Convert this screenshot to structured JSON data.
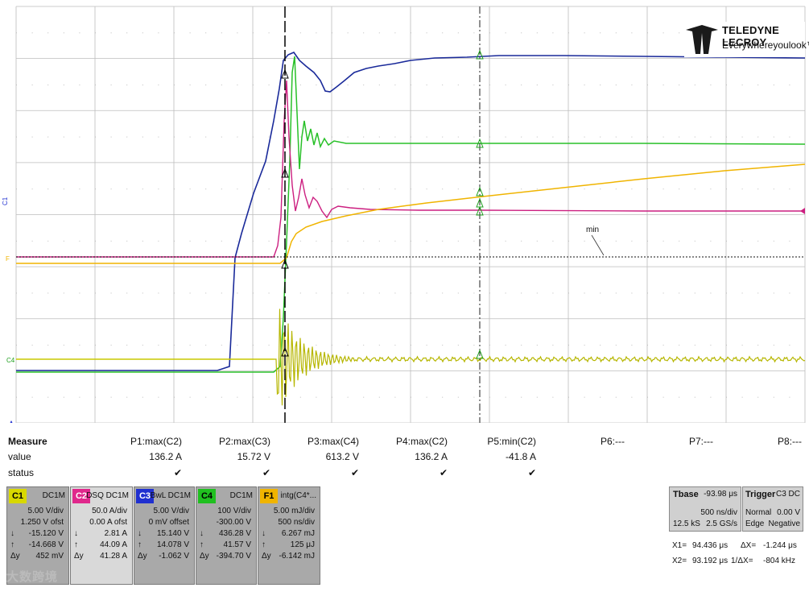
{
  "logo": {
    "brand": "TELEDYNE LECROY",
    "tagline": "Everywhereyoulook™"
  },
  "grid": {
    "color": "#bdbdbd"
  },
  "marker_label": "min",
  "channel_markers": {
    "c1": "C1",
    "c4": "C4",
    "f1": "F"
  },
  "measure": {
    "title": "Measure",
    "row_labels": [
      "value",
      "status"
    ],
    "items": [
      {
        "param": "P1:max(C2)",
        "value": "136.2 A",
        "status": "✔"
      },
      {
        "param": "P2:max(C3)",
        "value": "15.72 V",
        "status": "✔"
      },
      {
        "param": "P3:max(C4)",
        "value": "613.2 V",
        "status": "✔"
      },
      {
        "param": "P4:max(C2)",
        "value": "136.2 A",
        "status": "✔"
      },
      {
        "param": "P5:min(C2)",
        "value": "-41.8 A",
        "status": "✔"
      },
      {
        "param": "P6:---",
        "value": "",
        "status": ""
      },
      {
        "param": "P7:---",
        "value": "",
        "status": ""
      },
      {
        "param": "P8:---",
        "value": "",
        "status": ""
      }
    ]
  },
  "channels": [
    {
      "chip": "C1",
      "color": "#d8d800",
      "name": "DC1M",
      "lines": [
        [
          "",
          "5.00 V/div"
        ],
        [
          "",
          "1.250 V ofst"
        ],
        [
          "↓",
          "-15.120 V"
        ],
        [
          "↑",
          "-14.668 V"
        ],
        [
          "Δy",
          "452 mV"
        ]
      ]
    },
    {
      "chip": "C2",
      "color": "#e0288c",
      "name": "DSQ DC1M",
      "lines": [
        [
          "",
          "50.0 A/div"
        ],
        [
          "",
          "0.00 A ofst"
        ],
        [
          "↓",
          "2.81 A"
        ],
        [
          "↑",
          "44.09 A"
        ],
        [
          "Δy",
          "41.28 A"
        ]
      ]
    },
    {
      "chip": "C3",
      "color": "#2030d0",
      "name": "BwL DC1M",
      "lines": [
        [
          "",
          "5.00 V/div"
        ],
        [
          "",
          "0 mV offset"
        ],
        [
          "↓",
          "15.140 V"
        ],
        [
          "↑",
          "14.078 V"
        ],
        [
          "Δy",
          "-1.062 V"
        ]
      ]
    },
    {
      "chip": "C4",
      "color": "#20c020",
      "name": "DC1M",
      "lines": [
        [
          "",
          "100 V/div"
        ],
        [
          "",
          "-300.00 V"
        ],
        [
          "↓",
          "436.28 V"
        ],
        [
          "↑",
          "41.57 V"
        ],
        [
          "Δy",
          "-394.70 V"
        ]
      ]
    },
    {
      "chip": "F1",
      "color": "#f0b400",
      "name": "intg(C4*...",
      "lines": [
        [
          "",
          "5.00 mJ/div"
        ],
        [
          "",
          "500 ns/div"
        ],
        [
          "↓",
          "6.267 mJ"
        ],
        [
          "↑",
          "125 μJ"
        ],
        [
          "Δy",
          "-6.142 mJ"
        ]
      ]
    }
  ],
  "timebase": {
    "label": "Tbase",
    "offset": "-93.98 μs",
    "tdiv": "500 ns/div",
    "samples": "12.5 kS",
    "rate": "2.5 GS/s"
  },
  "trigger": {
    "label": "Trigger",
    "source": "C3 DC",
    "mode": "Normal",
    "level": "0.00 V",
    "type": "Edge",
    "slope": "Negative"
  },
  "cursors": {
    "x1": "X1=",
    "x1v": "94.436 μs",
    "dx": "ΔX=",
    "dxv": "-1.244 μs",
    "x2": "X2=",
    "x2v": "93.192 μs",
    "idx": "1/ΔX=",
    "idxv": "-804 kHz"
  },
  "watermark": "大数跨境"
}
